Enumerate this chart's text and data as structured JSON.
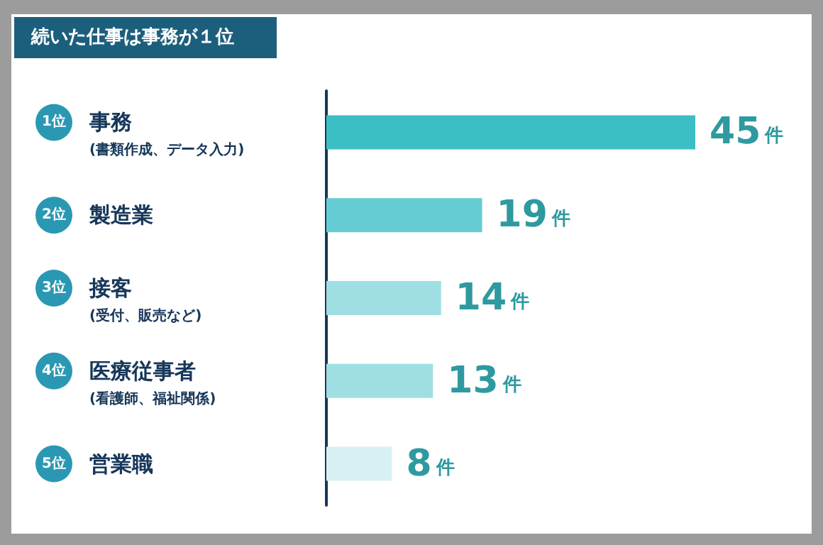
{
  "chart_data": {
    "type": "bar",
    "orientation": "horizontal",
    "title": "続いた仕事は事務が１位",
    "categories": [
      "事務\n(書類作成、データ入力)",
      "製造業",
      "接客\n(受付、販売など)",
      "医療従事者\n(看護師、福祉関係)",
      "営業職"
    ],
    "values": [
      45,
      19,
      14,
      13,
      8
    ],
    "colors": [
      "#3bbfc5",
      "#66ccd3",
      "#9fdfe3",
      "#9fdfe3",
      "#d7f1f3"
    ],
    "value_labels": [
      "45件",
      "19件",
      "14件",
      "13件",
      "8件"
    ],
    "annotations": [
      "1位",
      "2位",
      "3位",
      "4位",
      "5位"
    ],
    "data_labels": false
  }
}
